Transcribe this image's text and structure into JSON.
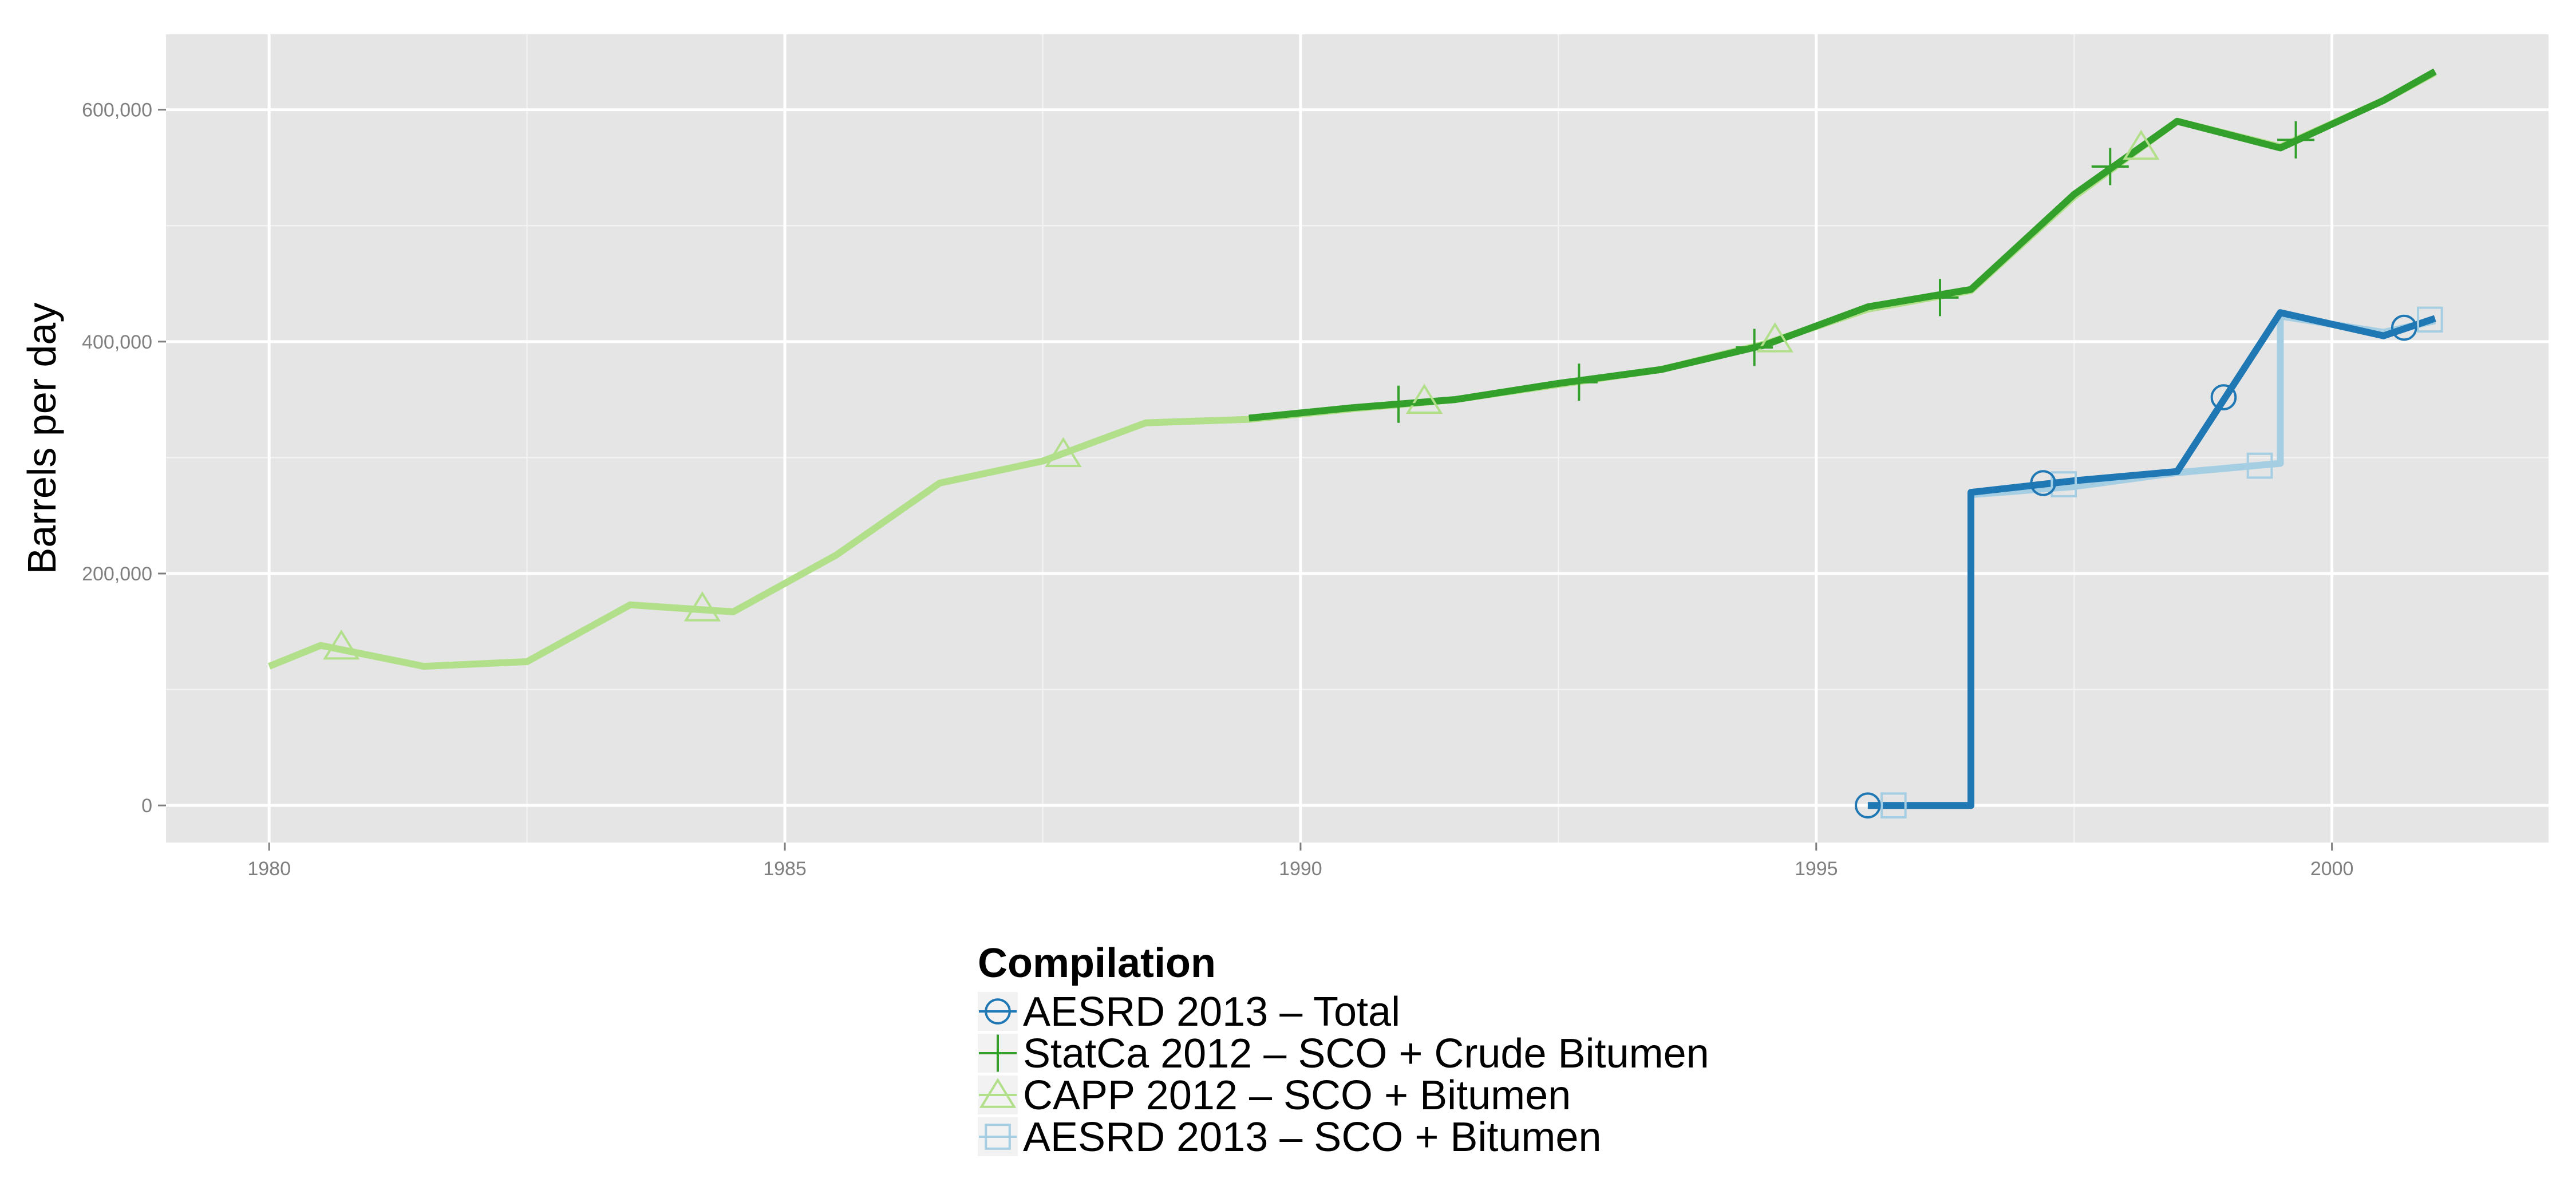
{
  "chart_data": {
    "type": "line",
    "title": "",
    "xlabel": "",
    "ylabel": "Barrels per day",
    "xlim": [
      1979,
      2002.1
    ],
    "ylim": [
      -32000,
      665000
    ],
    "x_ticks": [
      1980,
      1985,
      1990,
      1995,
      2000
    ],
    "x_tick_labels": [
      "1980",
      "1985",
      "1990",
      "1995",
      "2000"
    ],
    "y_ticks": [
      0,
      200000,
      400000,
      600000
    ],
    "y_tick_labels": [
      "0",
      "200,000",
      "400,000",
      "600,000"
    ],
    "grid": true,
    "legend_position": "bottom",
    "legend": {
      "title": "Compilation"
    },
    "series": [
      {
        "name": "AESRD 2013 – SCO + Bitumen",
        "color": "#a6cee3",
        "marker": "square",
        "step": true,
        "points": [
          [
            1995.5,
            0
          ],
          [
            1996.5,
            0
          ],
          [
            1996.5,
            268000
          ],
          [
            1997.5,
            275000
          ],
          [
            1998.5,
            287000
          ],
          [
            1999.5,
            295000
          ],
          [
            1999.5,
            422000
          ],
          [
            2000.5,
            408000
          ],
          [
            2001,
            418000
          ]
        ],
        "markers": [
          [
            1995.75,
            0
          ],
          [
            1997.4,
            277000
          ],
          [
            1999.3,
            293000
          ],
          [
            2000.95,
            419000
          ]
        ]
      },
      {
        "name": "AESRD 2013 – Total",
        "color": "#1f78b4",
        "marker": "circle",
        "step": true,
        "points": [
          [
            1995.5,
            0
          ],
          [
            1996.5,
            0
          ],
          [
            1996.5,
            270000
          ],
          [
            1997.5,
            280000
          ],
          [
            1998.5,
            288000
          ],
          [
            1999.5,
            425000
          ],
          [
            2000.5,
            405000
          ],
          [
            2001,
            420000
          ]
        ],
        "markers": [
          [
            1995.5,
            0
          ],
          [
            1997.2,
            278000
          ],
          [
            1998.95,
            352000
          ],
          [
            2000.7,
            412000
          ]
        ]
      },
      {
        "name": "CAPP 2012 – SCO + Bitumen",
        "color": "#b2df8a",
        "marker": "triangle",
        "points": [
          [
            1980,
            120000
          ],
          [
            1980.5,
            138000
          ],
          [
            1981.5,
            120000
          ],
          [
            1982.5,
            124000
          ],
          [
            1983.5,
            173000
          ],
          [
            1984.5,
            167000
          ],
          [
            1985.5,
            216000
          ],
          [
            1986.5,
            278000
          ],
          [
            1987.5,
            297000
          ],
          [
            1988.5,
            330000
          ],
          [
            1989.5,
            333000
          ],
          [
            1990.5,
            342000
          ],
          [
            1991.5,
            350000
          ],
          [
            1992.5,
            363000
          ],
          [
            1993.5,
            376000
          ],
          [
            1994.5,
            398000
          ],
          [
            1995.5,
            428000
          ],
          [
            1996.5,
            444000
          ],
          [
            1997.5,
            525000
          ],
          [
            1998.5,
            590000
          ],
          [
            1999.5,
            568000
          ],
          [
            2000.5,
            608000
          ],
          [
            2001,
            632000
          ]
        ],
        "markers": [
          [
            1980.7,
            137000
          ],
          [
            1984.2,
            170000
          ],
          [
            1987.7,
            303000
          ],
          [
            1991.2,
            349000
          ],
          [
            1994.6,
            402000
          ],
          [
            1998.15,
            568000
          ]
        ]
      },
      {
        "name": "StatCa 2012 – SCO + Crude Bitumen",
        "color": "#33a02c",
        "marker": "plus",
        "points": [
          [
            1989.5,
            334000
          ],
          [
            1990.5,
            343000
          ],
          [
            1991.5,
            350000
          ],
          [
            1992.5,
            364000
          ],
          [
            1993.5,
            376000
          ],
          [
            1994.5,
            397000
          ],
          [
            1995.5,
            430000
          ],
          [
            1996.5,
            445000
          ],
          [
            1997.5,
            527000
          ],
          [
            1998.5,
            590000
          ],
          [
            1999.5,
            567000
          ],
          [
            2000.5,
            608000
          ],
          [
            2001,
            633000
          ]
        ],
        "markers": [
          [
            1990.95,
            346000
          ],
          [
            1992.7,
            365000
          ],
          [
            1994.4,
            395000
          ],
          [
            1996.2,
            438000
          ],
          [
            1997.85,
            551000
          ],
          [
            1999.65,
            574000
          ]
        ]
      }
    ]
  },
  "legend_entries": [
    {
      "label": "AESRD 2013 – Total",
      "color": "#1f78b4",
      "marker": "circle"
    },
    {
      "label": "StatCa 2012 – SCO + Crude Bitumen",
      "color": "#33a02c",
      "marker": "plus"
    },
    {
      "label": "CAPP 2012 – SCO + Bitumen",
      "color": "#b2df8a",
      "marker": "triangle"
    },
    {
      "label": "AESRD 2013 – SCO + Bitumen",
      "color": "#a6cee3",
      "marker": "square"
    }
  ]
}
